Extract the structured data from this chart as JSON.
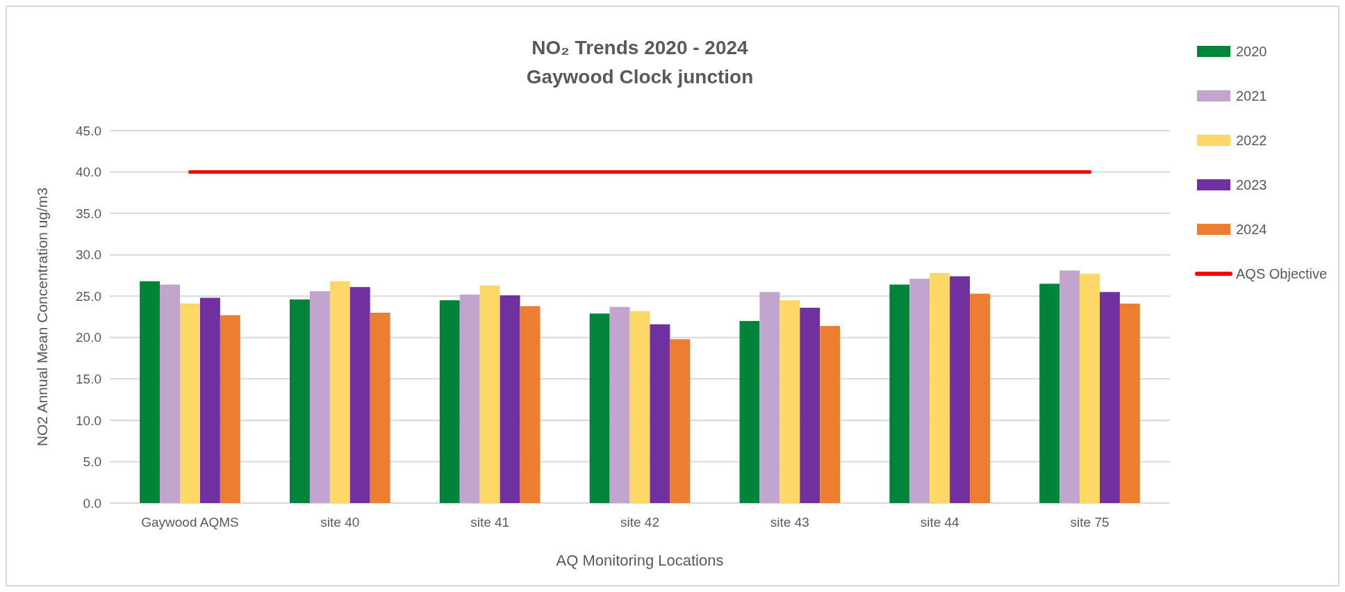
{
  "chart_data": {
    "type": "bar",
    "title": "NO₂ Trends 2020 - 2024",
    "subtitle": "Gaywood Clock junction",
    "xlabel": "AQ Monitoring Locations",
    "ylabel": "NO2 Annual Mean Concentration ug/m3",
    "categories": [
      "Gaywood AQMS",
      "site 40",
      "site 41",
      "site 42",
      "site 43",
      "site 44",
      "site 75"
    ],
    "series": [
      {
        "name": "2020",
        "color": "#00843a",
        "values": [
          26.8,
          24.6,
          24.5,
          22.9,
          22.0,
          26.4,
          26.5
        ]
      },
      {
        "name": "2021",
        "color": "#c1a5cf",
        "values": [
          26.4,
          25.6,
          25.2,
          23.7,
          25.5,
          27.1,
          28.1
        ]
      },
      {
        "name": "2022",
        "color": "#fdd866",
        "values": [
          24.1,
          26.8,
          26.3,
          23.2,
          24.5,
          27.8,
          27.7
        ]
      },
      {
        "name": "2023",
        "color": "#7030a0",
        "values": [
          24.8,
          26.1,
          25.1,
          21.6,
          23.6,
          27.4,
          25.5
        ]
      },
      {
        "name": "2024",
        "color": "#ed7d31",
        "values": [
          22.7,
          23.0,
          23.8,
          19.8,
          21.4,
          25.3,
          24.1
        ]
      },
      {
        "name": "AQS Objective",
        "type": "line",
        "color": "#ff0000",
        "marker": "none",
        "values": [
          40,
          40,
          40,
          40,
          40,
          40,
          40
        ]
      }
    ],
    "ylim": [
      0,
      45
    ],
    "yticks": [
      {
        "value": 0,
        "label": "0.0"
      },
      {
        "value": 5,
        "label": "5.0"
      },
      {
        "value": 10,
        "label": "10.0"
      },
      {
        "value": 15,
        "label": "15.0"
      },
      {
        "value": 20,
        "label": "20.0"
      },
      {
        "value": 25,
        "label": "25.0"
      },
      {
        "value": 30,
        "label": "30.0"
      },
      {
        "value": 35,
        "label": "35.0"
      },
      {
        "value": 40,
        "label": "40.0"
      },
      {
        "value": 45,
        "label": "45.0"
      }
    ],
    "grid": "y",
    "legend": "right"
  }
}
